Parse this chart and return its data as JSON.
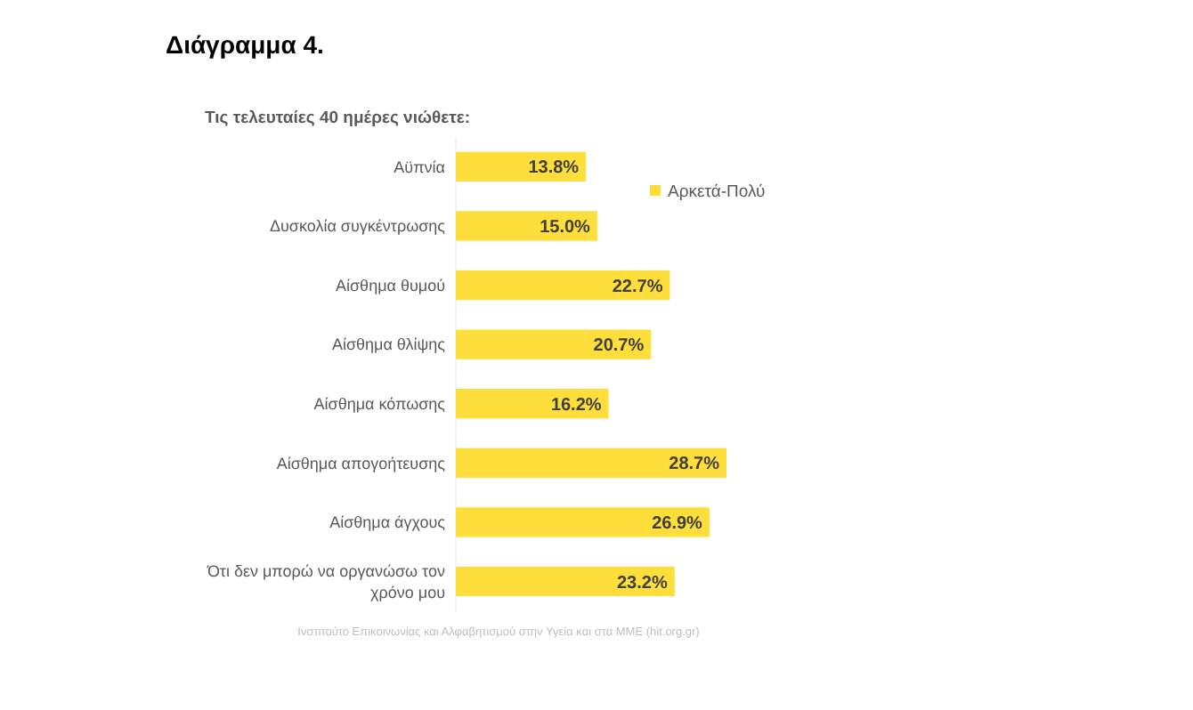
{
  "chart_data": {
    "type": "bar",
    "orientation": "horizontal",
    "title": "Διάγραμμα 4.",
    "subtitle": "Τις τελευταίες 40 ημέρες νιώθετε:",
    "categories": [
      "Αϋπνία",
      "Δυσκολία συγκέντρωσης",
      "Αίσθημα θυμού",
      "Αίσθημα θλίψης",
      "Αίσθημα κόπωσης",
      "Αίσθημα απογοήτευσης",
      "Αίσθημα άγχους",
      "Ότι δεν μπορώ να οργανώσω τον χρόνο μου"
    ],
    "series": [
      {
        "name": "Αρκετά-Πολύ",
        "color": "#fdde3b",
        "values": [
          13.8,
          15.0,
          22.7,
          20.7,
          16.2,
          28.7,
          26.9,
          23.2
        ],
        "value_labels": [
          "13.8%",
          "15.0%",
          "22.7%",
          "20.7%",
          "16.2%",
          "28.7%",
          "26.9%",
          "23.2%"
        ]
      }
    ],
    "legend": "right",
    "annotations": [
      "Ινστιτούτο Επικοινωνίας και Αλφαβητισμού στην Υγεία και στα ΜΜΕ (hit.org.gr)"
    ]
  }
}
